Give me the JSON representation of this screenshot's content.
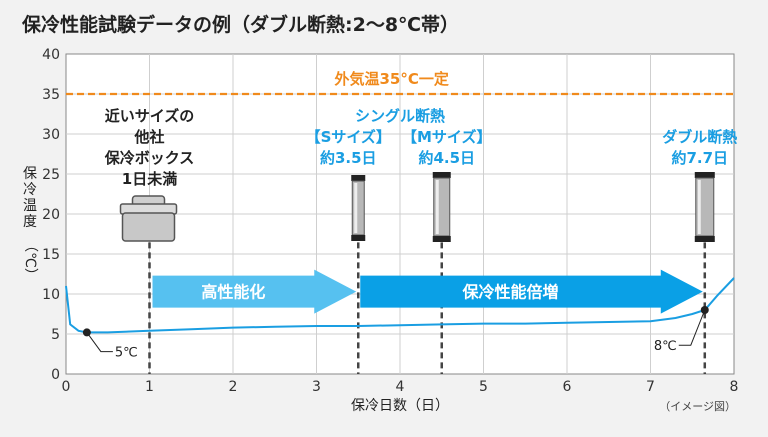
{
  "chart_data": {
    "type": "line",
    "title": "保冷性能試験データの例（ダブル断熱:2〜8℃帯）",
    "xlabel": "保冷日数（日）",
    "ylabel_chars": [
      "保",
      "冷",
      "温",
      "度",
      "（℃）"
    ],
    "note": "（イメージ図）",
    "xlim": [
      0,
      8
    ],
    "ylim": [
      0,
      40
    ],
    "x_ticks": [
      0,
      1,
      2,
      3,
      4,
      5,
      6,
      7,
      8
    ],
    "y_ticks": [
      0,
      5,
      10,
      15,
      20,
      25,
      30,
      35,
      40
    ],
    "series": [
      {
        "values_x": [
          0,
          0.05,
          0.15,
          0.25,
          0.5,
          1,
          1.5,
          2,
          2.5,
          3,
          3.5,
          4,
          4.5,
          5,
          5.5,
          6,
          6.5,
          7,
          7.3,
          7.5,
          7.65,
          7.8,
          8
        ],
        "values_y": [
          11,
          6.2,
          5.4,
          5.2,
          5.2,
          5.4,
          5.6,
          5.8,
          5.9,
          6.0,
          6.0,
          6.1,
          6.2,
          6.3,
          6.3,
          6.4,
          6.5,
          6.6,
          7.0,
          7.5,
          8.0,
          9.8,
          12
        ],
        "color": "#1a9ee2"
      }
    ],
    "reference_line": {
      "y": 35,
      "label": "外気温35°C一定",
      "color": "#f08a1c"
    },
    "vertical_markers": [
      {
        "x": 1,
        "label": [
          "近いサイズの",
          "他社",
          "保冷ボックス",
          "1日未満"
        ],
        "color": "#222222"
      },
      {
        "x": 3.5,
        "label": [
          "【Sサイズ】",
          "約3.5日"
        ],
        "color": "#1a9ee2"
      },
      {
        "x": 4.5,
        "label": [
          "【Mサイズ】",
          "約4.5日"
        ],
        "color": "#1a9ee2"
      },
      {
        "x": 7.65,
        "label": [
          "ダブル断熱",
          "約7.7日"
        ],
        "color": "#1a9ee2"
      }
    ],
    "group_label": {
      "text": "シングル断熱",
      "color": "#1a9ee2"
    },
    "points": [
      {
        "x": 0.25,
        "y": 5.2,
        "label": "5℃"
      },
      {
        "x": 7.65,
        "y": 8.0,
        "label": "8℃"
      }
    ],
    "arrows": [
      {
        "x_from": 1,
        "x_to": 3.5,
        "label": "高性能化",
        "color": "#56c1f0"
      },
      {
        "x_from": 3.5,
        "x_to": 7.65,
        "label": "保冷性能倍増",
        "color": "#0aa0e6"
      }
    ]
  }
}
